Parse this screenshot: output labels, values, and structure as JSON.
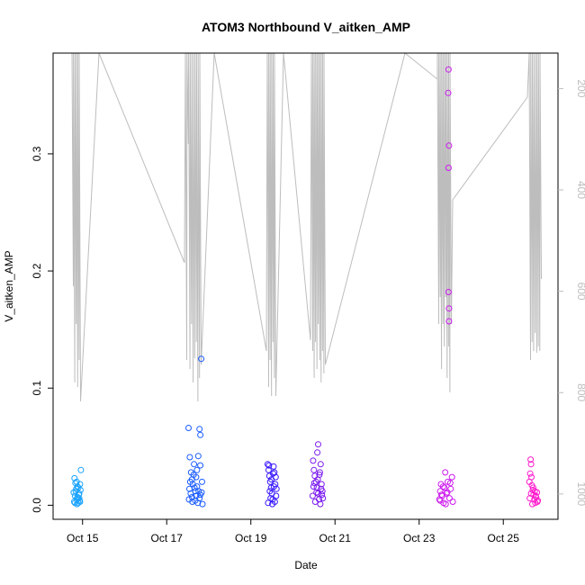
{
  "chart_data": {
    "type": "scatter",
    "title": "ATOM3 Northbound V_aitken_AMP",
    "xlabel": "Date",
    "ylabel": "V_aitken_AMP",
    "x_unit": "day of October",
    "xlim": [
      14.3,
      26.3
    ],
    "ylim": [
      -0.012,
      0.386
    ],
    "x_ticks": [
      15,
      17,
      19,
      21,
      23,
      25
    ],
    "x_tick_labels": [
      "Oct 15",
      "Oct 17",
      "Oct 19",
      "Oct 21",
      "Oct 23",
      "Oct 25"
    ],
    "y_ticks": [
      0.0,
      0.1,
      0.2,
      0.3
    ],
    "y_tick_labels": [
      "0.0",
      "0.1",
      "0.2",
      "0.3"
    ],
    "secondary_axis": {
      "series_color": "#bdbdbd",
      "reversed": true,
      "ylim": [
        1050,
        130
      ],
      "ticks": [
        200,
        400,
        600,
        800,
        1000
      ],
      "tick_labels": [
        "200",
        "400",
        "600",
        "800",
        "1000"
      ]
    },
    "groups": [
      {
        "color": "#1aa3ff",
        "x_range": [
          14.78,
          14.97
        ],
        "points": [
          [
            14.8,
            0.003
          ],
          [
            14.82,
            0.008
          ],
          [
            14.84,
            0.012
          ],
          [
            14.86,
            0.005
          ],
          [
            14.88,
            0.016
          ],
          [
            14.9,
            0.002
          ],
          [
            14.92,
            0.01
          ],
          [
            14.94,
            0.018
          ],
          [
            14.81,
            0.023
          ],
          [
            14.83,
            0.019
          ],
          [
            14.85,
            0.014
          ],
          [
            14.87,
            0.001
          ],
          [
            14.89,
            0.006
          ],
          [
            14.91,
            0.009
          ],
          [
            14.93,
            0.004
          ],
          [
            14.95,
            0.013
          ],
          [
            14.96,
            0.03
          ],
          [
            14.79,
            0.011
          ],
          [
            14.82,
            0.002
          ],
          [
            14.88,
            0.007
          ],
          [
            14.9,
            0.015
          ],
          [
            14.94,
            0.003
          ],
          [
            14.86,
            0.02
          ],
          [
            14.92,
            0.006
          ]
        ]
      },
      {
        "color": "#1a5cff",
        "x_range": [
          17.5,
          17.85
        ],
        "points": [
          [
            17.52,
            0.066
          ],
          [
            17.55,
            0.041
          ],
          [
            17.58,
            0.028
          ],
          [
            17.6,
            0.022
          ],
          [
            17.62,
            0.018
          ],
          [
            17.65,
            0.035
          ],
          [
            17.68,
            0.012
          ],
          [
            17.7,
            0.008
          ],
          [
            17.72,
            0.03
          ],
          [
            17.75,
            0.042
          ],
          [
            17.78,
            0.065
          ],
          [
            17.8,
            0.06
          ],
          [
            17.82,
            0.125
          ],
          [
            17.53,
            0.005
          ],
          [
            17.57,
            0.01
          ],
          [
            17.61,
            0.003
          ],
          [
            17.66,
            0.015
          ],
          [
            17.7,
            0.024
          ],
          [
            17.74,
            0.002
          ],
          [
            17.78,
            0.006
          ],
          [
            17.83,
            0.011
          ],
          [
            17.85,
            0.001
          ],
          [
            17.56,
            0.02
          ],
          [
            17.64,
            0.026
          ],
          [
            17.72,
            0.016
          ],
          [
            17.8,
            0.034
          ],
          [
            17.6,
            0.007
          ],
          [
            17.76,
            0.012
          ],
          [
            17.68,
            0.004
          ],
          [
            17.84,
            0.02
          ],
          [
            17.54,
            0.014
          ],
          [
            17.8,
            0.009
          ]
        ]
      },
      {
        "color": "#3a1aff",
        "x_range": [
          19.38,
          19.62
        ],
        "points": [
          [
            19.4,
            0.035
          ],
          [
            19.42,
            0.03
          ],
          [
            19.44,
            0.025
          ],
          [
            19.46,
            0.02
          ],
          [
            19.48,
            0.015
          ],
          [
            19.5,
            0.01
          ],
          [
            19.52,
            0.005
          ],
          [
            19.54,
            0.033
          ],
          [
            19.56,
            0.028
          ],
          [
            19.58,
            0.018
          ],
          [
            19.6,
            0.008
          ],
          [
            19.41,
            0.002
          ],
          [
            19.45,
            0.012
          ],
          [
            19.49,
            0.022
          ],
          [
            19.53,
            0.027
          ],
          [
            19.57,
            0.003
          ],
          [
            19.61,
            0.014
          ],
          [
            19.43,
            0.034
          ],
          [
            19.47,
            0.006
          ],
          [
            19.55,
            0.016
          ],
          [
            19.59,
            0.024
          ],
          [
            19.51,
            0.001
          ]
        ]
      },
      {
        "color": "#7a1aee",
        "x_range": [
          20.45,
          20.72
        ],
        "points": [
          [
            20.48,
            0.038
          ],
          [
            20.6,
            0.052
          ],
          [
            20.58,
            0.045
          ],
          [
            20.66,
            0.035
          ],
          [
            20.5,
            0.03
          ],
          [
            20.52,
            0.025
          ],
          [
            20.55,
            0.02
          ],
          [
            20.57,
            0.015
          ],
          [
            20.6,
            0.01
          ],
          [
            20.62,
            0.005
          ],
          [
            20.64,
            0.028
          ],
          [
            20.68,
            0.018
          ],
          [
            20.7,
            0.012
          ],
          [
            20.47,
            0.008
          ],
          [
            20.53,
            0.003
          ],
          [
            20.59,
            0.022
          ],
          [
            20.65,
            0.001
          ],
          [
            20.71,
            0.006
          ],
          [
            20.49,
            0.016
          ],
          [
            20.56,
            0.011
          ],
          [
            20.63,
            0.026
          ],
          [
            20.69,
            0.009
          ],
          [
            20.51,
            0.019
          ],
          [
            20.67,
            0.014
          ]
        ]
      },
      {
        "color": "#cc1aee",
        "x_range": [
          23.45,
          23.85
        ],
        "points": [
          [
            23.7,
            0.372
          ],
          [
            23.69,
            0.352
          ],
          [
            23.71,
            0.307
          ],
          [
            23.7,
            0.288
          ],
          [
            23.7,
            0.182
          ],
          [
            23.71,
            0.168
          ],
          [
            23.71,
            0.157
          ],
          [
            23.48,
            0.005
          ],
          [
            23.5,
            0.012
          ],
          [
            23.52,
            0.018
          ],
          [
            23.55,
            0.008
          ],
          [
            23.58,
            0.002
          ],
          [
            23.6,
            0.015
          ],
          [
            23.62,
            0.028
          ],
          [
            23.65,
            0.01
          ],
          [
            23.68,
            0.02
          ],
          [
            23.72,
            0.006
          ],
          [
            23.75,
            0.014
          ],
          [
            23.78,
            0.024
          ],
          [
            23.8,
            0.003
          ],
          [
            23.53,
            0.009
          ],
          [
            23.57,
            0.016
          ],
          [
            23.63,
            0.001
          ],
          [
            23.67,
            0.011
          ],
          [
            23.74,
            0.019
          ],
          [
            23.5,
            0.004
          ]
        ]
      },
      {
        "color": "#ff1acc",
        "x_range": [
          25.6,
          25.85
        ],
        "points": [
          [
            25.65,
            0.039
          ],
          [
            25.66,
            0.035
          ],
          [
            25.64,
            0.027
          ],
          [
            25.67,
            0.024
          ],
          [
            25.62,
            0.02
          ],
          [
            25.68,
            0.017
          ],
          [
            25.7,
            0.013
          ],
          [
            25.72,
            0.009
          ],
          [
            25.74,
            0.005
          ],
          [
            25.76,
            0.002
          ],
          [
            25.78,
            0.007
          ],
          [
            25.8,
            0.011
          ],
          [
            25.82,
            0.004
          ],
          [
            25.63,
            0.006
          ],
          [
            25.69,
            0.001
          ],
          [
            25.75,
            0.012
          ],
          [
            25.81,
            0.003
          ],
          [
            25.71,
            0.015
          ],
          [
            25.77,
            0.008
          ],
          [
            25.66,
            0.01
          ]
        ]
      }
    ],
    "grey_series_note_shape": "pressure_trace"
  }
}
